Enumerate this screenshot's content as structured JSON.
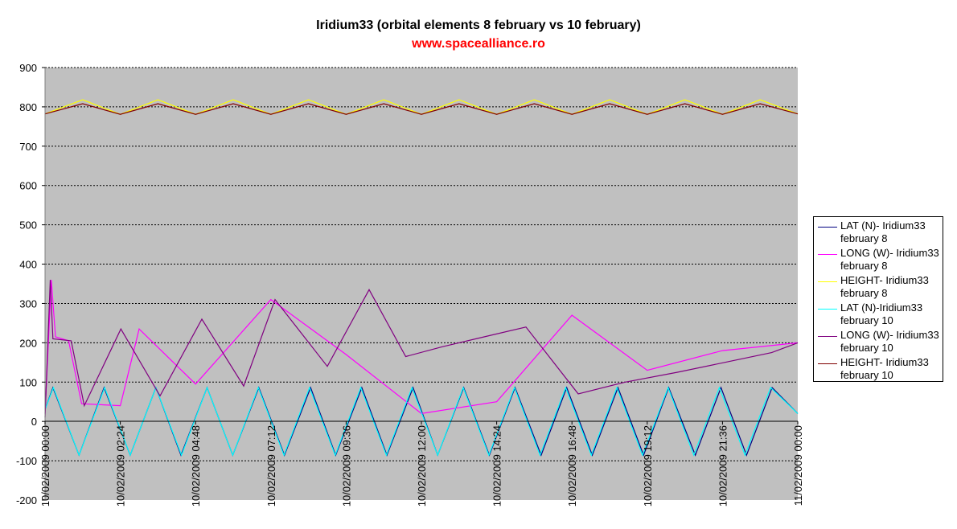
{
  "chart_data": {
    "type": "line",
    "title": "Iridium33 (orbital elements 8 february vs 10 february)",
    "subtitle": "www.spacealliance.ro",
    "xlabel": "",
    "ylabel": "",
    "ylim": [
      -200,
      900
    ],
    "yticks": [
      900,
      800,
      700,
      600,
      500,
      400,
      300,
      200,
      100,
      0,
      -100,
      -200
    ],
    "xticks": [
      "10/02/2009 00:00",
      "10/02/2009 02:24",
      "10/02/2009 04:48",
      "10/02/2009 07:12",
      "10/02/2009 09:36",
      "10/02/2009 12:00",
      "10/02/2009 14:24",
      "10/02/2009 16:48",
      "10/02/2009 19:12",
      "10/02/2009 21:36",
      "11/02/2009 00:00"
    ],
    "grid": "horizontal dashed",
    "legend_position": "right",
    "plot_background": "#c0c0c0",
    "series": [
      {
        "name": "LAT (N)- Iridium33 february 8",
        "color": "#000080",
        "x": [
          "10/02/2009 00:00",
          "10/02/2009 00:15",
          "10/02/2009 01:05",
          "10/02/2009 01:53",
          "10/02/2009 02:43",
          "10/02/2009 03:32",
          "10/02/2009 04:20",
          "10/02/2009 05:10",
          "10/02/2009 05:59",
          "10/02/2009 06:49",
          "10/02/2009 07:38",
          "10/02/2009 08:28",
          "10/02/2009 09:16",
          "10/02/2009 10:06",
          "10/02/2009 10:54",
          "10/02/2009 11:44",
          "10/02/2009 12:31",
          "10/02/2009 13:21",
          "10/02/2009 14:10",
          "10/02/2009 14:59",
          "10/02/2009 15:49",
          "10/02/2009 16:38",
          "10/02/2009 17:27",
          "10/02/2009 18:16",
          "10/02/2009 19:05",
          "10/02/2009 19:53",
          "10/02/2009 20:44",
          "10/02/2009 21:33",
          "10/02/2009 22:22",
          "10/02/2009 23:11",
          "11/02/2009 00:00"
        ],
        "y": [
          30,
          86,
          -86,
          86,
          -86,
          86,
          -86,
          86,
          -86,
          86,
          -86,
          86,
          -86,
          86,
          -86,
          86,
          -86,
          86,
          -86,
          86,
          -86,
          86,
          -86,
          86,
          -86,
          86,
          -86,
          86,
          -86,
          86,
          20
        ]
      },
      {
        "name": "LONG (W)- Iridium33 february 8",
        "color": "#ff00ff",
        "x": [
          "10/02/2009 00:00",
          "10/02/2009 00:12",
          "10/02/2009 00:20",
          "10/02/2009 00:45",
          "10/02/2009 01:10",
          "10/02/2009 02:24",
          "10/02/2009 03:00",
          "10/02/2009 04:48",
          "10/02/2009 07:12",
          "10/02/2009 09:36",
          "10/02/2009 12:00",
          "10/02/2009 14:24",
          "10/02/2009 16:48",
          "10/02/2009 19:12",
          "10/02/2009 21:36",
          "11/02/2009 00:00"
        ],
        "y": [
          20,
          360,
          215,
          205,
          45,
          40,
          235,
          95,
          310,
          170,
          20,
          50,
          270,
          130,
          180,
          200
        ]
      },
      {
        "name": "HEIGHT- Iridium33 february 8",
        "color": "#ffff00",
        "x": [
          "10/02/2009 00:00",
          "10/02/2009 01:12",
          "10/02/2009 02:24",
          "10/02/2009 03:36",
          "10/02/2009 04:48",
          "10/02/2009 06:00",
          "10/02/2009 07:12",
          "10/02/2009 08:24",
          "10/02/2009 09:36",
          "10/02/2009 10:48",
          "10/02/2009 12:00",
          "10/02/2009 13:12",
          "10/02/2009 14:24",
          "10/02/2009 15:36",
          "10/02/2009 16:48",
          "10/02/2009 18:00",
          "10/02/2009 19:12",
          "10/02/2009 20:24",
          "10/02/2009 21:36",
          "10/02/2009 22:48",
          "11/02/2009 00:00"
        ],
        "y": [
          782,
          818,
          781,
          818,
          781,
          818,
          781,
          818,
          781,
          818,
          781,
          818,
          781,
          818,
          781,
          818,
          781,
          818,
          781,
          818,
          782
        ]
      },
      {
        "name": "LAT (N)-Iridium33 february 10",
        "color": "#00ffff",
        "x": [
          "10/02/2009 00:00",
          "10/02/2009 00:16",
          "10/02/2009 01:05",
          "10/02/2009 01:54",
          "10/02/2009 02:43",
          "10/02/2009 03:32",
          "10/02/2009 04:21",
          "10/02/2009 05:10",
          "10/02/2009 05:59",
          "10/02/2009 06:48",
          "10/02/2009 07:37",
          "10/02/2009 08:26",
          "10/02/2009 09:15",
          "10/02/2009 10:04",
          "10/02/2009 10:53",
          "10/02/2009 11:42",
          "10/02/2009 12:31",
          "10/02/2009 13:20",
          "10/02/2009 14:09",
          "10/02/2009 14:58",
          "10/02/2009 15:47",
          "10/02/2009 16:36",
          "10/02/2009 17:25",
          "10/02/2009 18:14",
          "10/02/2009 19:03",
          "10/02/2009 19:52",
          "10/02/2009 20:41",
          "10/02/2009 21:30",
          "10/02/2009 22:19",
          "10/02/2009 23:08",
          "11/02/2009 00:00"
        ],
        "y": [
          30,
          86,
          -86,
          86,
          -86,
          86,
          -86,
          86,
          -86,
          86,
          -86,
          86,
          -86,
          86,
          -86,
          86,
          -86,
          86,
          -86,
          86,
          -86,
          86,
          -86,
          86,
          -86,
          86,
          -86,
          86,
          -86,
          86,
          20
        ]
      },
      {
        "name": "LONG (W)- Iridium33 february 10",
        "color": "#800080",
        "x": [
          "10/02/2009 00:00",
          "10/02/2009 00:10",
          "10/02/2009 00:15",
          "10/02/2009 00:50",
          "10/02/2009 01:15",
          "10/02/2009 02:25",
          "10/02/2009 03:40",
          "10/02/2009 05:00",
          "10/02/2009 06:20",
          "10/02/2009 07:20",
          "10/02/2009 09:00",
          "10/02/2009 10:20",
          "10/02/2009 11:30",
          "10/02/2009 12:40",
          "10/02/2009 14:00",
          "10/02/2009 15:20",
          "10/02/2009 17:00",
          "10/02/2009 18:30",
          "10/02/2009 20:10",
          "10/02/2009 21:40",
          "10/02/2009 23:10",
          "11/02/2009 00:00"
        ],
        "y": [
          10,
          360,
          210,
          205,
          40,
          235,
          65,
          260,
          90,
          310,
          140,
          335,
          165,
          190,
          215,
          240,
          70,
          100,
          125,
          150,
          175,
          200
        ]
      },
      {
        "name": "HEIGHT- Iridium33 february 10",
        "color": "#800000",
        "x": [
          "10/02/2009 00:00",
          "10/02/2009 01:12",
          "10/02/2009 02:24",
          "10/02/2009 03:36",
          "10/02/2009 04:48",
          "10/02/2009 06:00",
          "10/02/2009 07:12",
          "10/02/2009 08:24",
          "10/02/2009 09:36",
          "10/02/2009 10:48",
          "10/02/2009 12:00",
          "10/02/2009 13:12",
          "10/02/2009 14:24",
          "10/02/2009 15:36",
          "10/02/2009 16:48",
          "10/02/2009 18:00",
          "10/02/2009 19:12",
          "10/02/2009 20:24",
          "10/02/2009 21:36",
          "10/02/2009 22:48",
          "11/02/2009 00:00"
        ],
        "y": [
          782,
          808,
          781,
          808,
          781,
          808,
          781,
          808,
          781,
          808,
          781,
          808,
          781,
          808,
          781,
          808,
          781,
          808,
          781,
          808,
          782
        ]
      }
    ],
    "legend": [
      {
        "line1": "LAT (N)- Iridium33",
        "line2": "february 8",
        "color": "#000080"
      },
      {
        "line1": "LONG (W)- Iridium33",
        "line2": "february 8",
        "color": "#ff00ff"
      },
      {
        "line1": "HEIGHT- Iridium33",
        "line2": "february 8",
        "color": "#ffff00"
      },
      {
        "line1": "LAT (N)-Iridium33",
        "line2": "february 10",
        "color": "#00ffff"
      },
      {
        "line1": "LONG (W)- Iridium33",
        "line2": "february 10",
        "color": "#800080"
      },
      {
        "line1": "HEIGHT- Iridium33",
        "line2": "february 10",
        "color": "#800000"
      }
    ]
  }
}
